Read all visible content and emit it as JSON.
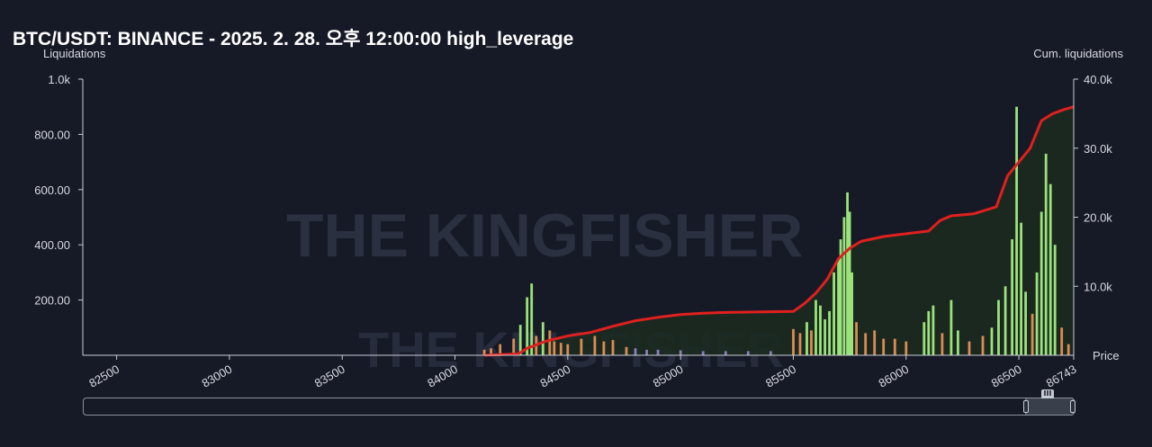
{
  "title": "BTC/USDT: BINANCE - 2025. 2. 28. 오후 12:00:00 high_leverage",
  "watermark": "THE KINGFISHER",
  "colors": {
    "background": "#161a26",
    "cum_line": "#e0201e",
    "cum_fill": "#1b2a20",
    "bar_green": "#9be27a",
    "bar_orange": "#d98d52",
    "bar_purple": "#8a7fb8",
    "axis": "#c9ccd4"
  },
  "chart_data": {
    "type": "bar",
    "left_axis_label": "Liquidations",
    "right_axis_label": "Cum. liquidations",
    "x_axis_label": "Price",
    "xlim": [
      82350,
      86743
    ],
    "x_ticks": [
      "82500",
      "83000",
      "83500",
      "84000",
      "84500",
      "85000",
      "85500",
      "86000",
      "86500",
      "86743"
    ],
    "y_left_lim": [
      0,
      1000
    ],
    "y_left_ticks": [
      "200.00",
      "400.00",
      "600.00",
      "800.00",
      "1.0k"
    ],
    "y_right_lim": [
      0,
      40000
    ],
    "y_right_ticks": [
      "10.0k",
      "20.0k",
      "30.0k",
      "40.0k"
    ],
    "series": [
      {
        "name": "liquidations",
        "type": "bar",
        "bars": [
          [
            84130,
            20,
            "orange"
          ],
          [
            84160,
            25,
            "orange"
          ],
          [
            84200,
            40,
            "orange"
          ],
          [
            84260,
            60,
            "orange"
          ],
          [
            84290,
            110,
            "green"
          ],
          [
            84320,
            210,
            "green"
          ],
          [
            84340,
            260,
            "green"
          ],
          [
            84360,
            70,
            "orange"
          ],
          [
            84390,
            120,
            "green"
          ],
          [
            84420,
            90,
            "orange"
          ],
          [
            84440,
            50,
            "orange"
          ],
          [
            84470,
            45,
            "orange"
          ],
          [
            84500,
            40,
            "orange"
          ],
          [
            84560,
            60,
            "orange"
          ],
          [
            84620,
            70,
            "orange"
          ],
          [
            84660,
            50,
            "orange"
          ],
          [
            84700,
            55,
            "orange"
          ],
          [
            84760,
            30,
            "orange"
          ],
          [
            84800,
            25,
            "purple"
          ],
          [
            84850,
            20,
            "purple"
          ],
          [
            84900,
            20,
            "purple"
          ],
          [
            85000,
            18,
            "purple"
          ],
          [
            85100,
            15,
            "purple"
          ],
          [
            85200,
            15,
            "purple"
          ],
          [
            85300,
            15,
            "purple"
          ],
          [
            85400,
            15,
            "purple"
          ],
          [
            85500,
            95,
            "orange"
          ],
          [
            85530,
            80,
            "orange"
          ],
          [
            85560,
            120,
            "green"
          ],
          [
            85580,
            90,
            "orange"
          ],
          [
            85600,
            200,
            "green"
          ],
          [
            85620,
            180,
            "green"
          ],
          [
            85640,
            130,
            "green"
          ],
          [
            85660,
            160,
            "green"
          ],
          [
            85680,
            300,
            "green"
          ],
          [
            85700,
            350,
            "green"
          ],
          [
            85710,
            420,
            "green"
          ],
          [
            85725,
            500,
            "green"
          ],
          [
            85740,
            590,
            "green"
          ],
          [
            85750,
            520,
            "green"
          ],
          [
            85760,
            300,
            "green"
          ],
          [
            85780,
            120,
            "orange"
          ],
          [
            85820,
            80,
            "orange"
          ],
          [
            85860,
            90,
            "orange"
          ],
          [
            85900,
            60,
            "orange"
          ],
          [
            85950,
            60,
            "orange"
          ],
          [
            86000,
            50,
            "orange"
          ],
          [
            86080,
            120,
            "green"
          ],
          [
            86100,
            160,
            "green"
          ],
          [
            86120,
            180,
            "green"
          ],
          [
            86160,
            80,
            "orange"
          ],
          [
            86200,
            200,
            "green"
          ],
          [
            86230,
            90,
            "green"
          ],
          [
            86280,
            50,
            "orange"
          ],
          [
            86340,
            70,
            "orange"
          ],
          [
            86380,
            100,
            "green"
          ],
          [
            86410,
            200,
            "green"
          ],
          [
            86440,
            250,
            "green"
          ],
          [
            86470,
            420,
            "green"
          ],
          [
            86490,
            900,
            "green"
          ],
          [
            86510,
            480,
            "green"
          ],
          [
            86530,
            230,
            "green"
          ],
          [
            86560,
            150,
            "orange"
          ],
          [
            86580,
            300,
            "green"
          ],
          [
            86600,
            520,
            "green"
          ],
          [
            86620,
            730,
            "green"
          ],
          [
            86640,
            620,
            "green"
          ],
          [
            86660,
            400,
            "green"
          ],
          [
            86690,
            100,
            "orange"
          ],
          [
            86720,
            40,
            "orange"
          ]
        ]
      },
      {
        "name": "Cum. liquidations",
        "type": "line",
        "points": [
          [
            84130,
            0
          ],
          [
            84280,
            200
          ],
          [
            84320,
            1000
          ],
          [
            84400,
            2000
          ],
          [
            84500,
            2800
          ],
          [
            84600,
            3300
          ],
          [
            84700,
            4200
          ],
          [
            84800,
            5000
          ],
          [
            84900,
            5500
          ],
          [
            85000,
            5900
          ],
          [
            85100,
            6100
          ],
          [
            85200,
            6200
          ],
          [
            85300,
            6250
          ],
          [
            85400,
            6300
          ],
          [
            85500,
            6350
          ],
          [
            85550,
            7500
          ],
          [
            85600,
            9000
          ],
          [
            85650,
            11000
          ],
          [
            85700,
            14000
          ],
          [
            85750,
            15500
          ],
          [
            85800,
            16500
          ],
          [
            85900,
            17200
          ],
          [
            86000,
            17600
          ],
          [
            86100,
            18000
          ],
          [
            86150,
            19500
          ],
          [
            86200,
            20200
          ],
          [
            86300,
            20500
          ],
          [
            86400,
            21500
          ],
          [
            86450,
            26000
          ],
          [
            86500,
            28000
          ],
          [
            86550,
            30000
          ],
          [
            86600,
            34000
          ],
          [
            86650,
            35000
          ],
          [
            86700,
            35600
          ],
          [
            86743,
            36000
          ]
        ]
      }
    ]
  }
}
